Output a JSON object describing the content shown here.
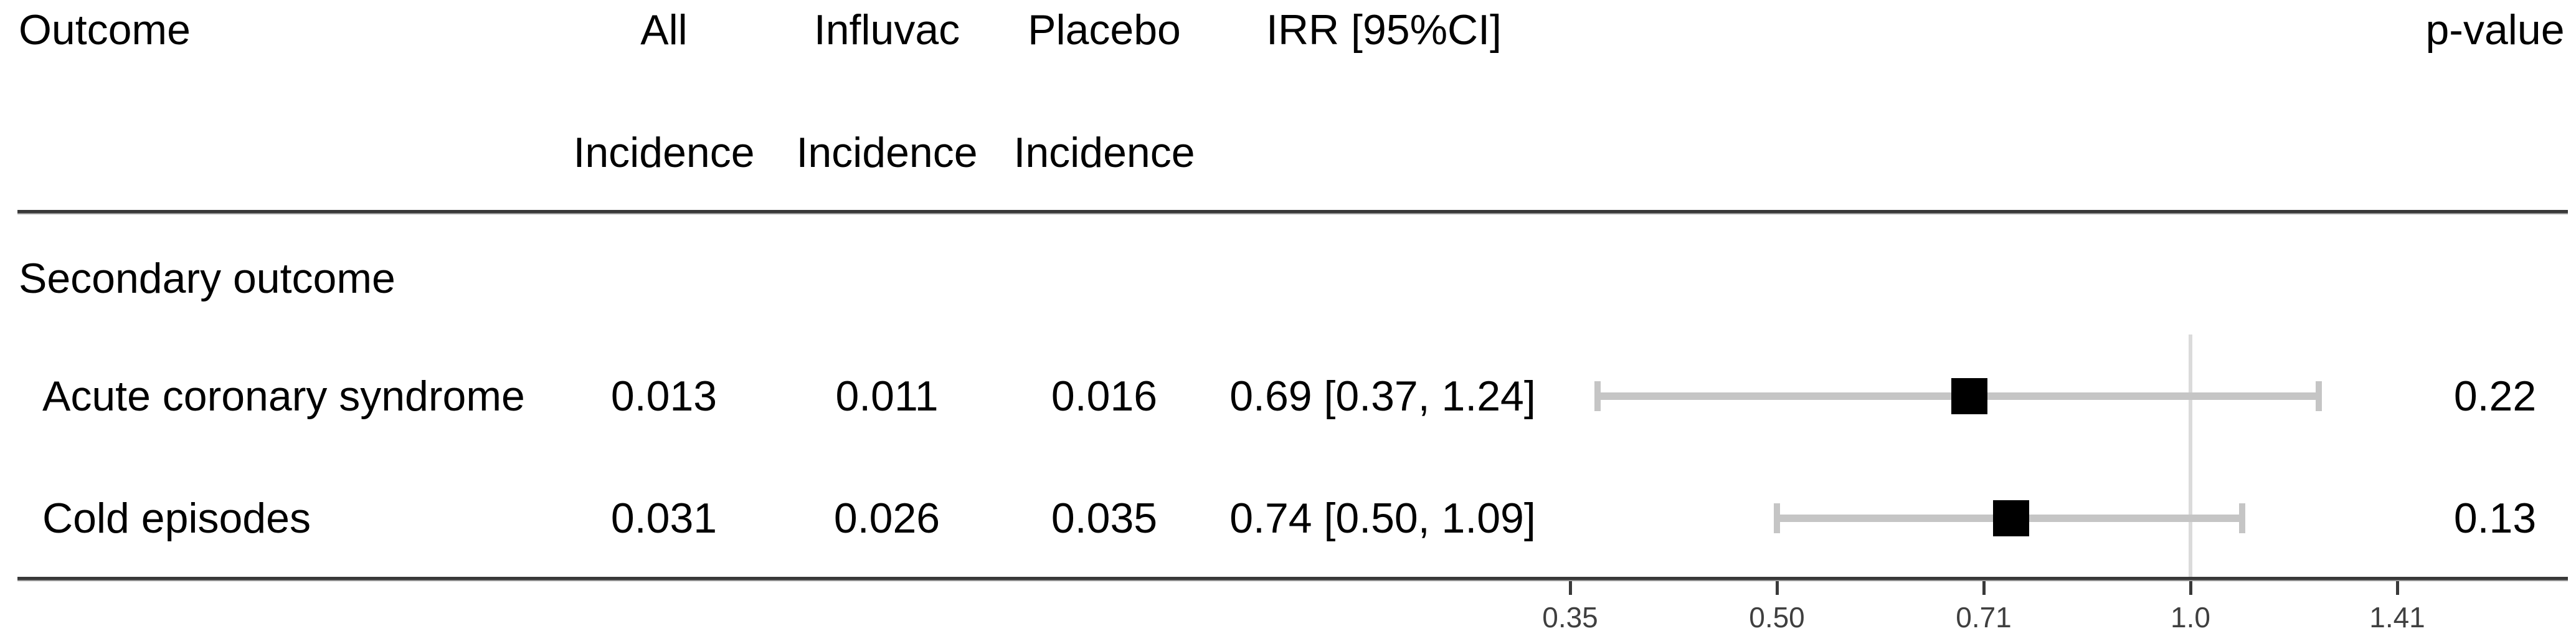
{
  "figure": {
    "kind": "forest plot table",
    "colors": {
      "text": "#000000",
      "rule": "#383838",
      "ci_bar": "#c5c5c5",
      "reference_line": "#dbdbdb",
      "point_marker": "#000000",
      "axis_tick_label": "#3f3f3f"
    }
  },
  "table": {
    "header": {
      "outcome": "Outcome",
      "all": "All",
      "influvac": "Influvac",
      "placebo": "Placebo",
      "irr": "IRR [95%CI]",
      "p_value": "p-value",
      "incidence": "Incidence"
    },
    "section_label": "Secondary outcome",
    "rows": [
      {
        "outcome": "Acute coronary syndrome",
        "all_incidence": "0.013",
        "influvac_incidence": "0.011",
        "placebo_incidence": "0.016",
        "irr_ci": "0.69 [0.37, 1.24]",
        "p_value": "0.22"
      },
      {
        "outcome": "Cold episodes",
        "all_incidence": "0.031",
        "influvac_incidence": "0.026",
        "placebo_incidence": "0.035",
        "irr_ci": "0.74 [0.50, 1.09]",
        "p_value": "0.13"
      }
    ]
  },
  "chart_data": {
    "type": "forest",
    "x_scale": "log2",
    "x_axis": {
      "tick_labels": [
        "0.35",
        "0.50",
        "0.71",
        "1.0",
        "1.41"
      ],
      "tick_log2_positions": [
        -1.5,
        -1,
        -0.5,
        0,
        0.5
      ],
      "reference_value": 1.0
    },
    "legend": "none",
    "series": [
      {
        "label": "Acute coronary syndrome",
        "estimate": 0.69,
        "ci_lower": 0.37,
        "ci_upper": 1.24,
        "p_value": "0.22"
      },
      {
        "label": "Cold episodes",
        "estimate": 0.74,
        "ci_lower": 0.5,
        "ci_upper": 1.09,
        "p_value": "0.13"
      }
    ]
  }
}
